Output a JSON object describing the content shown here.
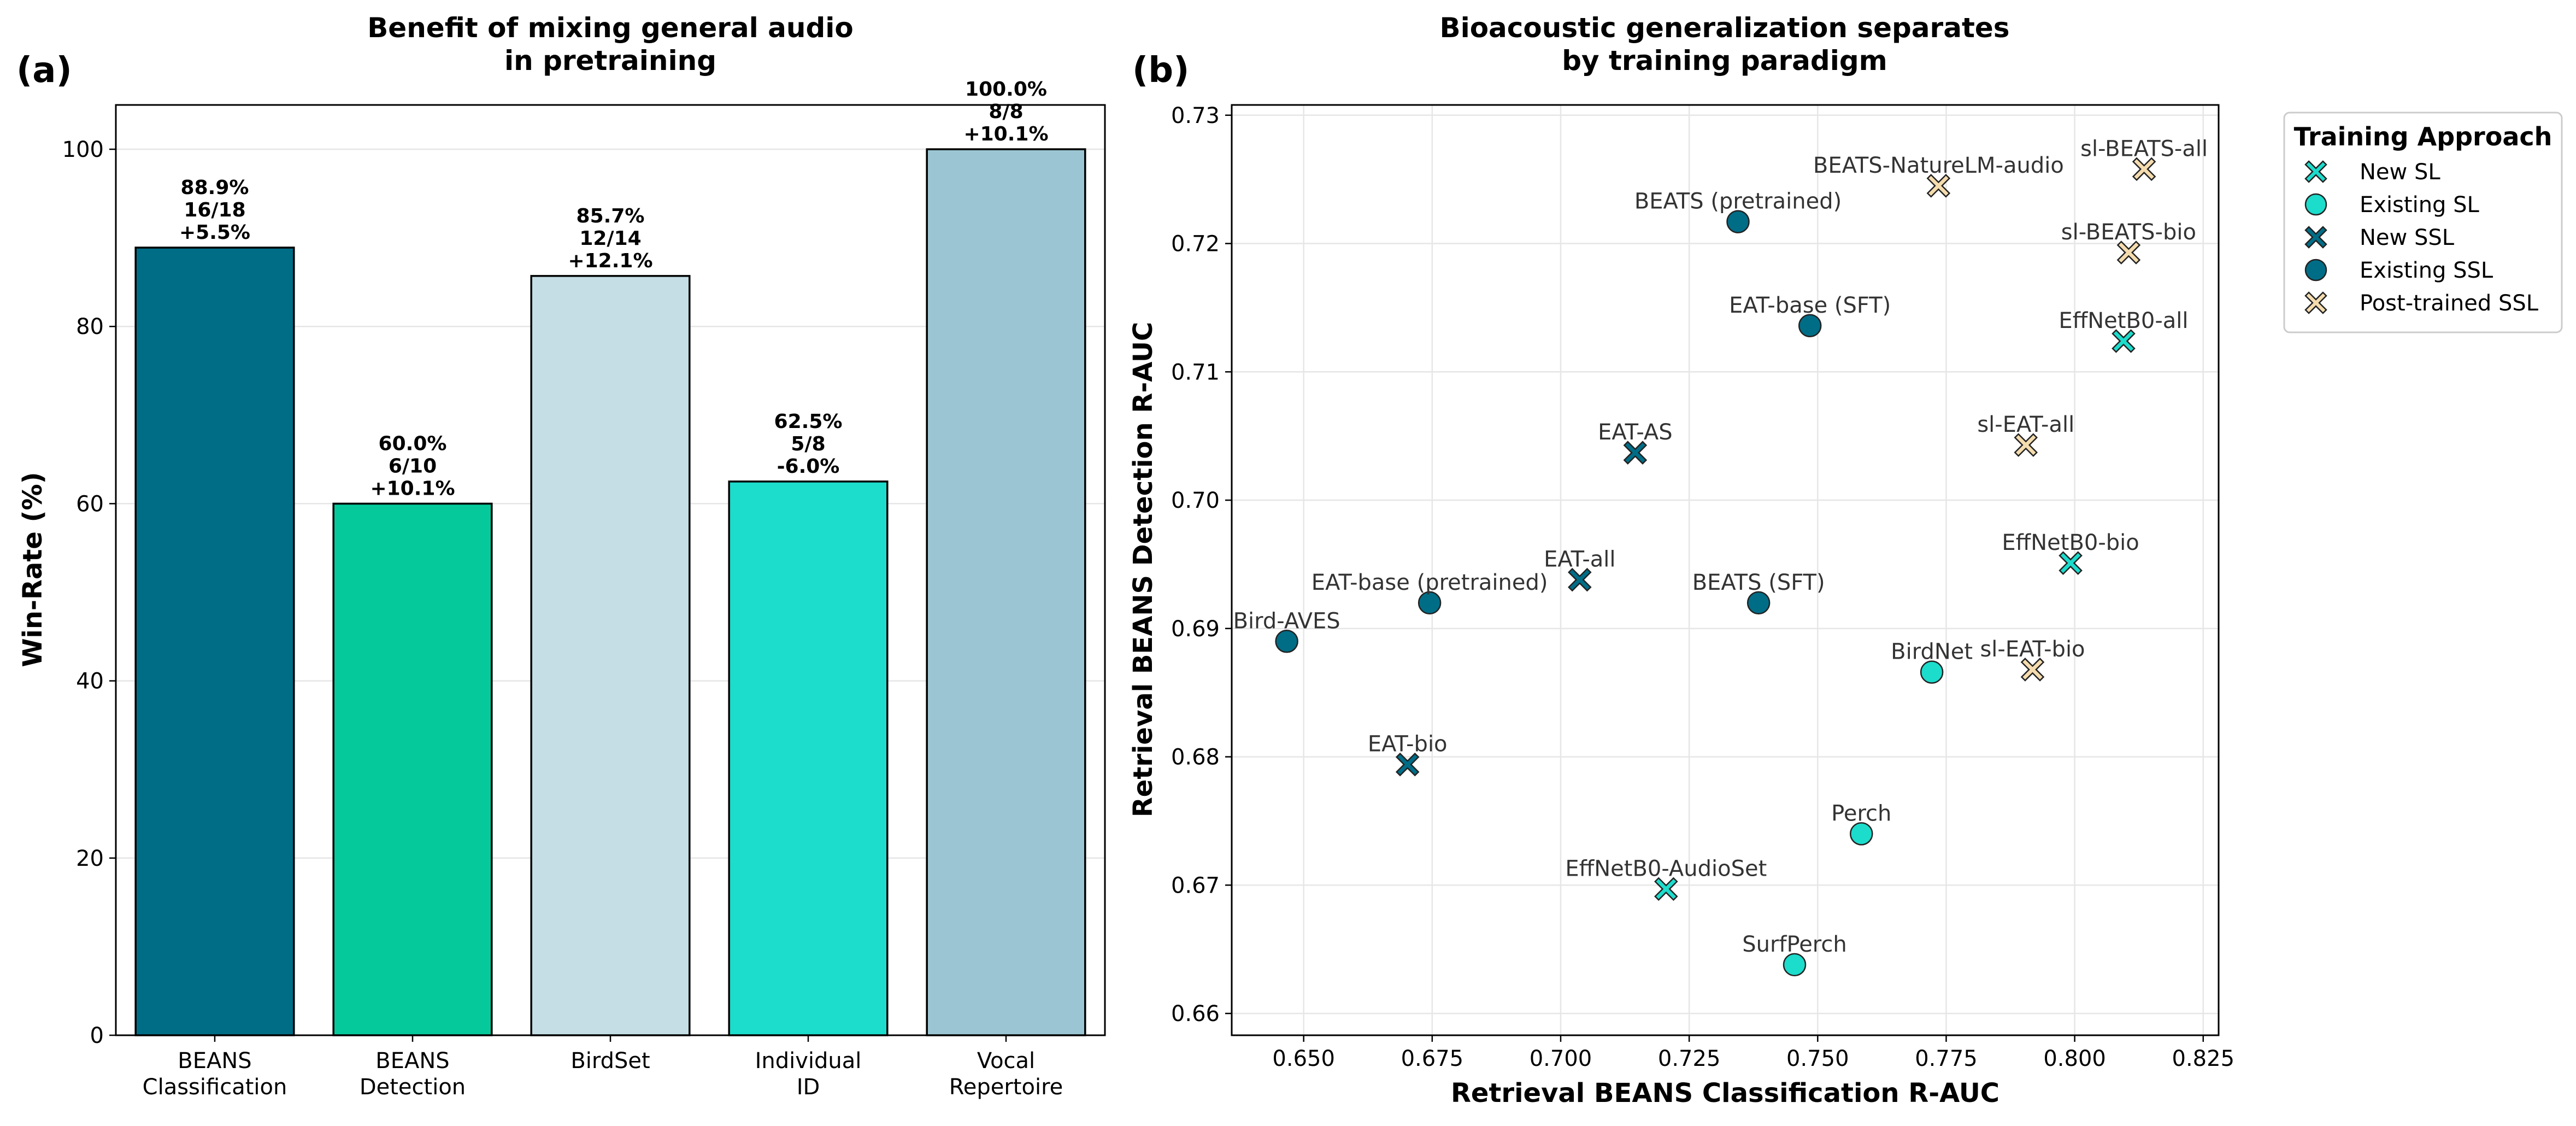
{
  "chart_data": [
    {
      "type": "bar",
      "panel_label": "(a)",
      "title_lines": [
        "Benefit of mixing general audio",
        "in pretraining"
      ],
      "ylabel": "Win-Rate (%)",
      "ylim": [
        0,
        105
      ],
      "yticks": [
        "0",
        "20",
        "40",
        "60",
        "80",
        "100"
      ],
      "grid": "y",
      "categories": [
        {
          "lines": [
            "BEANS",
            "Classification"
          ],
          "value": 88.9,
          "color": "#006d87",
          "label_lines": [
            "88.9%",
            "16/18",
            "+5.5%"
          ]
        },
        {
          "lines": [
            "BEANS",
            "Detection"
          ],
          "value": 60.0,
          "color": "#05c99b",
          "label_lines": [
            "60.0%",
            "6/10",
            "+10.1%"
          ]
        },
        {
          "lines": [
            "BirdSet"
          ],
          "value": 85.7,
          "color": "#c5dee6",
          "label_lines": [
            "85.7%",
            "12/14",
            "+12.1%"
          ]
        },
        {
          "lines": [
            "Individual",
            "ID"
          ],
          "value": 62.5,
          "color": "#1cdccc",
          "label_lines": [
            "62.5%",
            "5/8",
            "-6.0%"
          ]
        },
        {
          "lines": [
            "Vocal",
            "Repertoire"
          ],
          "value": 100.0,
          "color": "#9bc5d2",
          "label_lines": [
            "100.0%",
            "8/8",
            "+10.1%"
          ]
        }
      ]
    },
    {
      "type": "scatter",
      "panel_label": "(b)",
      "title_lines": [
        "Bioacoustic generalization separates",
        "by training paradigm"
      ],
      "xlabel": "Retrieval BEANS Classification R-AUC",
      "ylabel": "Retrieval BEANS Detection R-AUC",
      "xlim": [
        0.636,
        0.828
      ],
      "ylim": [
        0.6583,
        0.7308
      ],
      "xticks": [
        "0.650",
        "0.675",
        "0.700",
        "0.725",
        "0.750",
        "0.775",
        "0.800",
        "0.825"
      ],
      "yticks": [
        "0.66",
        "0.67",
        "0.68",
        "0.69",
        "0.70",
        "0.71",
        "0.72",
        "0.73"
      ],
      "grid": true,
      "legend": {
        "title": "Training Approach",
        "placement": "outside-right",
        "entries": [
          {
            "label": "New SL",
            "marker": "x",
            "color": "#1cdccc"
          },
          {
            "label": "Existing SL",
            "marker": "circle",
            "color": "#1cdccc"
          },
          {
            "label": "New SSL",
            "marker": "x",
            "color": "#006d87"
          },
          {
            "label": "Existing SSL",
            "marker": "circle",
            "color": "#006d87"
          },
          {
            "label": "Post-trained SSL",
            "marker": "x",
            "color": "#f5dcae"
          }
        ]
      },
      "points": [
        {
          "label": "sl-BEATS-all",
          "x": 0.8135,
          "y": 0.7258,
          "group": "Post-trained SSL",
          "anchor": "middle",
          "dx": 0,
          "dy": -24
        },
        {
          "label": "BEATS-NatureLM-audio",
          "x": 0.7735,
          "y": 0.7245,
          "group": "Post-trained SSL",
          "anchor": "middle",
          "dx": 0,
          "dy": -24
        },
        {
          "label": "BEATS (pretrained)",
          "x": 0.7345,
          "y": 0.7217,
          "group": "Existing SSL",
          "anchor": "middle",
          "dx": 0,
          "dy": -24
        },
        {
          "label": "sl-BEATS-bio",
          "x": 0.8105,
          "y": 0.7193,
          "group": "Post-trained SSL",
          "anchor": "middle",
          "dx": 0,
          "dy": -24
        },
        {
          "label": "EAT-base (SFT)",
          "x": 0.7485,
          "y": 0.7136,
          "group": "Existing SSL",
          "anchor": "middle",
          "dx": 0,
          "dy": -24
        },
        {
          "label": "EffNetB0-all",
          "x": 0.8095,
          "y": 0.7124,
          "group": "New SL",
          "anchor": "middle",
          "dx": 0,
          "dy": -24
        },
        {
          "label": "sl-EAT-all",
          "x": 0.7905,
          "y": 0.7043,
          "group": "Post-trained SSL",
          "anchor": "middle",
          "dx": 0,
          "dy": -24
        },
        {
          "label": "EAT-AS",
          "x": 0.7145,
          "y": 0.7037,
          "group": "New SSL",
          "anchor": "middle",
          "dx": 0,
          "dy": -24
        },
        {
          "label": "EffNetB0-bio",
          "x": 0.7992,
          "y": 0.6951,
          "group": "New SL",
          "anchor": "middle",
          "dx": 0,
          "dy": -24
        },
        {
          "label": "EAT-all",
          "x": 0.7037,
          "y": 0.6938,
          "group": "New SSL",
          "anchor": "middle",
          "dx": 0,
          "dy": -24
        },
        {
          "label": "EAT-base (pretrained)",
          "x": 0.6745,
          "y": 0.692,
          "group": "Existing SSL",
          "anchor": "middle",
          "dx": 0,
          "dy": -24
        },
        {
          "label": "BEATS (SFT)",
          "x": 0.7385,
          "y": 0.692,
          "group": "Existing SSL",
          "anchor": "middle",
          "dx": 0,
          "dy": -24
        },
        {
          "label": "Bird-AVES",
          "x": 0.6467,
          "y": 0.689,
          "group": "Existing SSL",
          "anchor": "middle",
          "dx": 0,
          "dy": -24
        },
        {
          "label": "BirdNet",
          "x": 0.7722,
          "y": 0.6866,
          "group": "Existing SL",
          "anchor": "middle",
          "dx": 0,
          "dy": -24
        },
        {
          "label": "sl-EAT-bio",
          "x": 0.7918,
          "y": 0.6868,
          "group": "Post-trained SSL",
          "anchor": "middle",
          "dx": 0,
          "dy": -24
        },
        {
          "label": "EAT-bio",
          "x": 0.6702,
          "y": 0.6794,
          "group": "New SSL",
          "anchor": "middle",
          "dx": 0,
          "dy": -24
        },
        {
          "label": "Perch",
          "x": 0.7585,
          "y": 0.674,
          "group": "Existing SL",
          "anchor": "middle",
          "dx": 0,
          "dy": -24
        },
        {
          "label": "EffNetB0-AudioSet",
          "x": 0.7205,
          "y": 0.6697,
          "group": "New SL",
          "anchor": "middle",
          "dx": 0,
          "dy": -24
        },
        {
          "label": "SurfPerch",
          "x": 0.7455,
          "y": 0.6638,
          "group": "Existing SL",
          "anchor": "middle",
          "dx": 0,
          "dy": -24
        }
      ]
    }
  ]
}
